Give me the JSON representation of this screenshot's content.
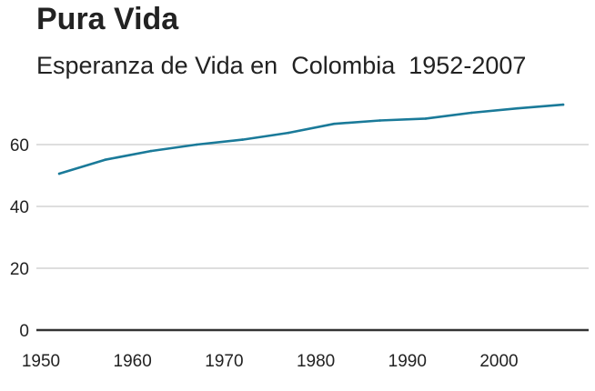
{
  "chart_data": {
    "type": "line",
    "title": "Pura Vida",
    "subtitle": "Esperanza de Vida en  Colombia  1952-2007",
    "xlabel": "",
    "ylabel": "",
    "x": [
      1952,
      1957,
      1962,
      1967,
      1972,
      1977,
      1982,
      1987,
      1992,
      1997,
      2002,
      2007
    ],
    "series": [
      {
        "values": [
          50.6,
          55.1,
          57.9,
          60.0,
          61.6,
          63.8,
          66.7,
          67.8,
          68.4,
          70.3,
          71.7,
          72.9
        ],
        "color": "#1a7a99"
      }
    ],
    "xlim": [
      1950,
      2010
    ],
    "ylim": [
      0,
      72.9
    ],
    "xticks": [
      1950,
      1960,
      1970,
      1980,
      1990,
      2000
    ],
    "yticks": [
      0,
      20,
      40,
      60
    ],
    "grid": "horizontal",
    "baseline_color": "#333333",
    "grid_color": "#cbcbcb"
  }
}
